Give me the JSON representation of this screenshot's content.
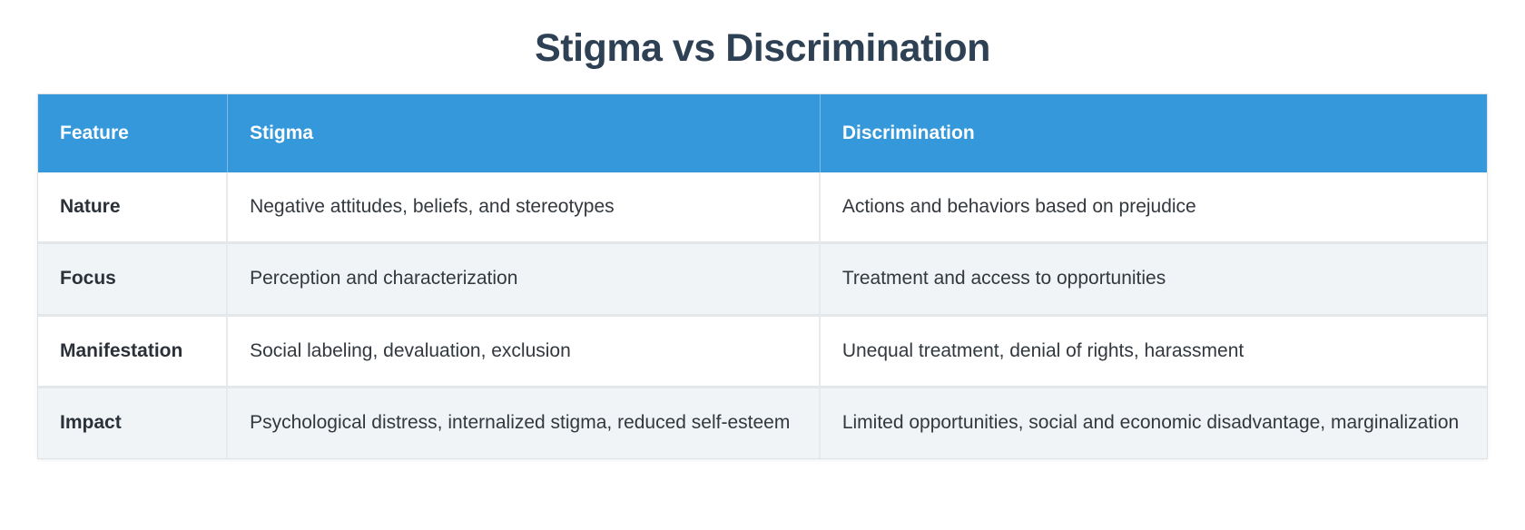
{
  "page": {
    "title": "Stigma vs Discrimination"
  },
  "colors": {
    "header_bg": "#3498db",
    "header_text": "#ffffff",
    "title_text": "#2e4154",
    "row_bg": "#ffffff",
    "row_alt_bg": "#f0f4f7",
    "border": "#e3e7ea",
    "body_text": "#32383e",
    "feature_text": "#2b3138"
  },
  "table": {
    "columns": {
      "feature": "Feature",
      "stigma": "Stigma",
      "discrimination": "Discrimination"
    },
    "rows": [
      {
        "feature": "Nature",
        "stigma": "Negative attitudes, beliefs, and stereotypes",
        "discrimination": "Actions and behaviors based on prejudice"
      },
      {
        "feature": "Focus",
        "stigma": "Perception and characterization",
        "discrimination": "Treatment and access to opportunities"
      },
      {
        "feature": "Manifestation",
        "stigma": "Social labeling, devaluation, exclusion",
        "discrimination": "Unequal treatment, denial of rights, harassment"
      },
      {
        "feature": "Impact",
        "stigma": "Psychological distress, internalized stigma, reduced self-esteem",
        "discrimination": "Limited opportunities, social and economic disadvantage, marginalization"
      }
    ]
  }
}
